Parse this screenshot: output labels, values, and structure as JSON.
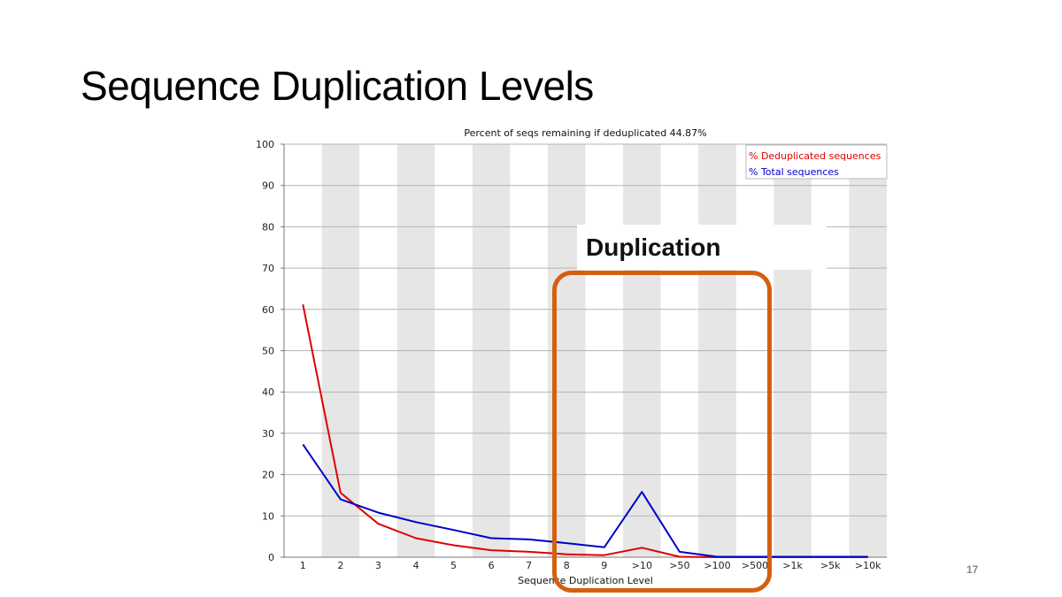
{
  "slide": {
    "title": "Sequence Duplication Levels",
    "page_number": "17"
  },
  "callout": {
    "label": "Duplication",
    "color": "#d4600f"
  },
  "chart_data": {
    "type": "line",
    "title": "Percent of seqs remaining if deduplicated 44.87%",
    "xlabel": "Sequence Duplication Level",
    "ylabel": "",
    "ylim": [
      0,
      100
    ],
    "yticks": [
      0,
      10,
      20,
      30,
      40,
      50,
      60,
      70,
      80,
      90,
      100
    ],
    "grid": true,
    "legend_position": "top-right",
    "categories": [
      "1",
      "2",
      "3",
      "4",
      "5",
      "6",
      "7",
      "8",
      "9",
      ">10",
      ">50",
      ">100",
      ">500",
      ">1k",
      ">5k",
      ">10k"
    ],
    "series": [
      {
        "name": "% Deduplicated sequences",
        "color": "#dd0000",
        "values": [
          61.2,
          15.6,
          8.1,
          4.6,
          2.9,
          1.7,
          1.3,
          0.7,
          0.5,
          2.3,
          0.1,
          0,
          0,
          0,
          0,
          0
        ]
      },
      {
        "name": "% Total sequences",
        "color": "#0000cc",
        "values": [
          27.3,
          14.0,
          10.8,
          8.5,
          6.6,
          4.6,
          4.3,
          3.4,
          2.4,
          15.8,
          1.3,
          0.1,
          0.1,
          0.1,
          0.1,
          0.1
        ]
      }
    ]
  }
}
